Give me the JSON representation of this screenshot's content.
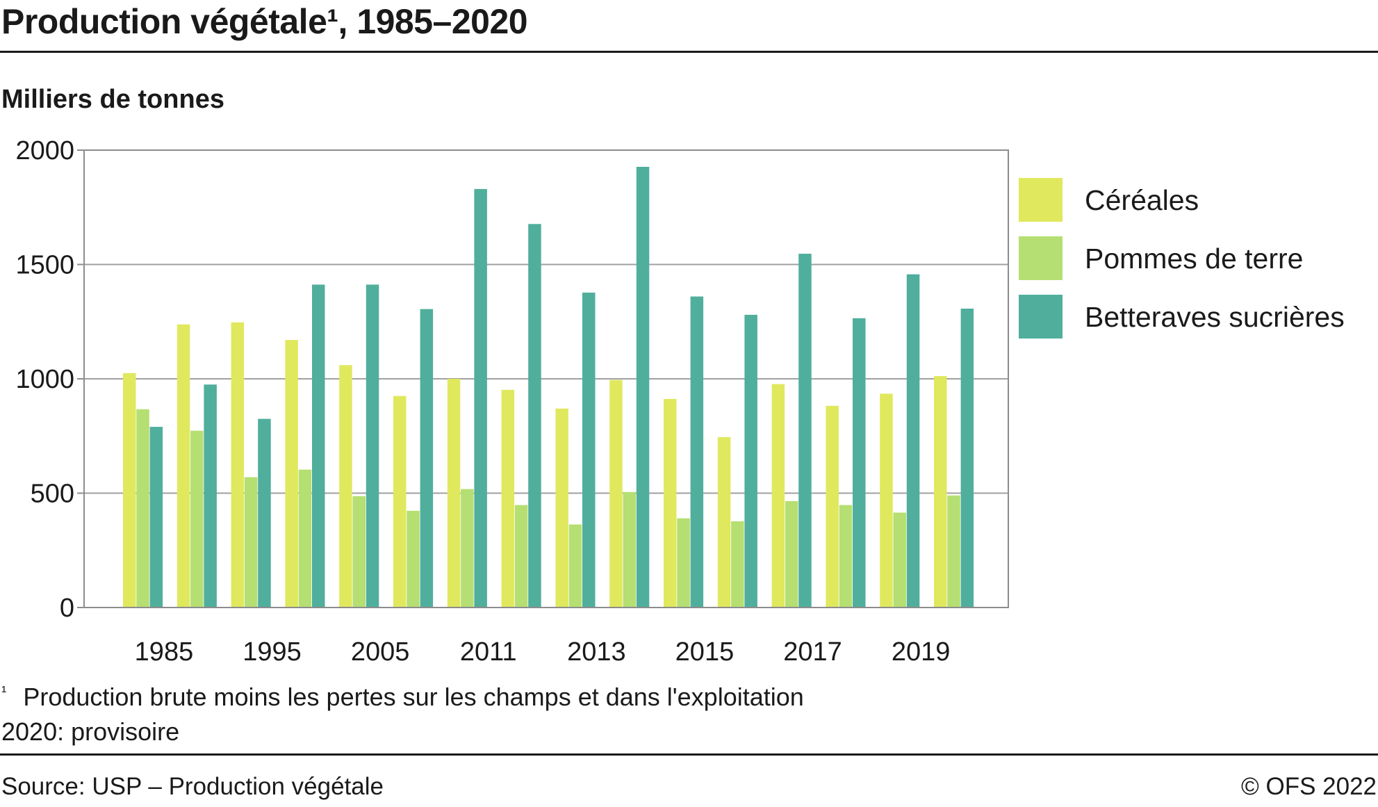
{
  "title": "Production végétale¹, 1985–2020",
  "subtitle": "Milliers de tonnes",
  "footnote_marker": "¹",
  "footnote": "Production brute moins les pertes sur les champs et dans l'exploitation",
  "note": "2020: provisoire",
  "source": "Source: USP – Production végétale",
  "copyright": "© OFS 2022",
  "colors": {
    "cereales": "#e0e85e",
    "pommes": "#b5df72",
    "betteraves": "#50ae9c",
    "grid": "#a0a0a0",
    "frame": "#8c8c8c"
  },
  "chart_data": {
    "type": "bar",
    "title": "Production végétale¹, 1985–2020",
    "ylabel": "Milliers de tonnes",
    "ylim": [
      0,
      2000
    ],
    "yticks": [
      0,
      500,
      1000,
      1500,
      2000
    ],
    "grid": true,
    "legend_position": "right",
    "categories": [
      "1985",
      "",
      "1995",
      "",
      "2005",
      "",
      "2011",
      "",
      "2013",
      "",
      "2015",
      "",
      "2017",
      "",
      "2019",
      ""
    ],
    "xtick_labels": [
      "1985",
      "1995",
      "2005",
      "2011",
      "2013",
      "2015",
      "2017",
      "2019"
    ],
    "series": [
      {
        "name": "Céréales",
        "color": "#e0e85e",
        "values": [
          1025,
          1238,
          1247,
          1170,
          1060,
          925,
          1000,
          952,
          870,
          995,
          912,
          745,
          977,
          882,
          935,
          1012
        ]
      },
      {
        "name": "Pommes de terre",
        "color": "#b5df72",
        "values": [
          867,
          773,
          570,
          603,
          487,
          423,
          518,
          448,
          363,
          505,
          390,
          377,
          465,
          448,
          415,
          490
        ]
      },
      {
        "name": "Betteraves sucrières",
        "color": "#50ae9c",
        "values": [
          790,
          975,
          825,
          1412,
          1412,
          1305,
          1830,
          1677,
          1377,
          1927,
          1360,
          1280,
          1547,
          1265,
          1457,
          1307
        ]
      }
    ]
  }
}
